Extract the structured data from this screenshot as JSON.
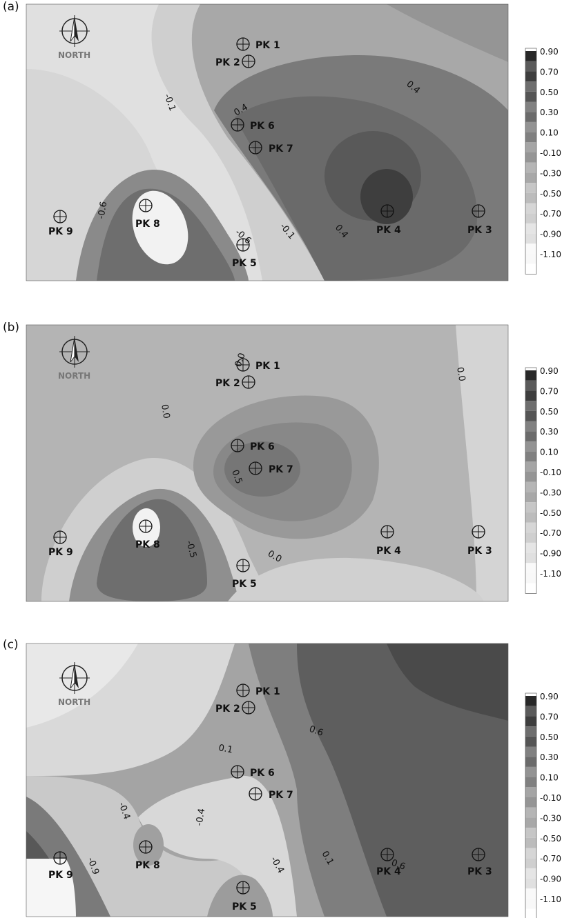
{
  "panels": [
    {
      "letter": "(a)",
      "north": "NORTH"
    },
    {
      "letter": "(b)",
      "north": "NORTH"
    },
    {
      "letter": "(c)",
      "north": "NORTH"
    }
  ],
  "chart_data": [
    {
      "type": "heatmap",
      "panel": "(a)",
      "colorbar": {
        "ticks": [
          "0.90",
          "0.70",
          "0.50",
          "0.30",
          "0.10",
          "-0.10",
          "-0.30",
          "-0.50",
          "-0.70",
          "-0.90",
          "-1.10"
        ],
        "range": [
          -1.1,
          1.0
        ],
        "colors": [
          "#282828",
          "#3e3e3e",
          "#555555",
          "#6b6b6b",
          "#808080",
          "#959595",
          "#a8a8a8",
          "#bcbcbc",
          "#cfcfcf",
          "#e0e0e0",
          "#f8f8f8"
        ]
      },
      "points": [
        {
          "name": "PK 1",
          "x": 0.5,
          "y": 0.1
        },
        {
          "name": "PK 2",
          "x": 0.5,
          "y": 0.16
        },
        {
          "name": "PK 3",
          "x": 1.0,
          "y": 0.74
        },
        {
          "name": "PK 4",
          "x": 0.75,
          "y": 0.74
        },
        {
          "name": "PK 5",
          "x": 0.46,
          "y": 0.86
        },
        {
          "name": "PK 6",
          "x": 0.44,
          "y": 0.42
        },
        {
          "name": "PK 7",
          "x": 0.5,
          "y": 0.5
        },
        {
          "name": "PK 8",
          "x": 0.24,
          "y": 0.72
        },
        {
          "name": "PK 9",
          "x": 0.0,
          "y": 0.76
        }
      ],
      "contour_labels": [
        "-0.1",
        "0.4",
        "0.4",
        "-0.6",
        "-0.6",
        "-0.1",
        "0.4"
      ]
    },
    {
      "type": "heatmap",
      "panel": "(b)",
      "colorbar": {
        "ticks": [
          "0.90",
          "0.70",
          "0.50",
          "0.30",
          "0.10",
          "-0.10",
          "-0.30",
          "-0.50",
          "-0.70",
          "-0.90",
          "-1.10"
        ],
        "range": [
          -1.1,
          1.0
        ]
      },
      "contour_labels": [
        "0.0",
        "0.0",
        "0.0",
        "0.5",
        "-0.5",
        "0.0"
      ]
    },
    {
      "type": "heatmap",
      "panel": "(c)",
      "colorbar": {
        "ticks": [
          "0.90",
          "0.70",
          "0.50",
          "0.30",
          "0.10",
          "-0.10",
          "-0.30",
          "-0.50",
          "-0.70",
          "-0.90",
          "-1.10"
        ],
        "range": [
          -1.1,
          1.0
        ]
      },
      "contour_labels": [
        "0.1",
        "0.6",
        "-0.4",
        "-0.4",
        "-0.9",
        "-0.4",
        "0.1",
        "0.6"
      ]
    }
  ]
}
